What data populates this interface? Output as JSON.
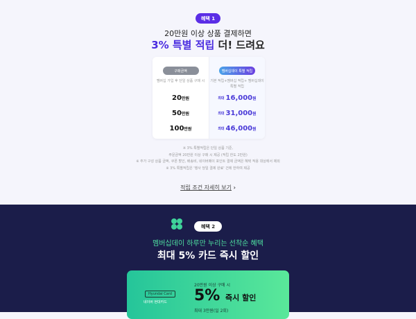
{
  "benefit1": {
    "badge": "혜택 1",
    "subtitle": "20만원 이상 상품 결제하면",
    "title_highlight": "3% 특별 적립",
    "title_rest": " 더! 드려요",
    "table": {
      "left_header": "구매금액",
      "right_header": "멤버십데이 특별 적립",
      "left_desc": "멤버십 가입 후 단일 상품 구매 시",
      "right_desc": "기본 적립+멤버십 적립+ 멤버십데이 특별 적립",
      "max_label": "최대",
      "rows": [
        {
          "amount": "20",
          "amount_unit": "만원",
          "reward": "16,000",
          "reward_unit": "원"
        },
        {
          "amount": "50",
          "amount_unit": "만원",
          "reward": "31,000",
          "reward_unit": "원"
        },
        {
          "amount": "100",
          "amount_unit": "만원",
          "reward": "46,000",
          "reward_unit": "원"
        }
      ]
    },
    "notes": [
      "※ 3% 특별적립은 단일 상품 기준,",
      "주문금액 20만원 이상 구매 시 제공 (적립 한도 2만원)",
      "※ 추가 구성 상품 금액, 쿠폰 할인, 배송비, 네이버페이 포인트 결제 금액은 혜택 적용 대상에서 제외",
      "※ 3% 특별적립은 '행사 당일 결제 완료' 건에 한하여 제공"
    ],
    "link": "적립 조건 자세히 보기"
  },
  "benefit2": {
    "badge": "혜택 2",
    "subtitle": "멤버십데이 하루만 누리는 선착순 혜택",
    "title": "최대 5% 카드 즉시 할인",
    "card": {
      "brand": "Hyundai Card",
      "card_name": "네이버 현대카드",
      "condition": "20만원 이상 구매 시",
      "rate": "5%",
      "rate_label": "즉시 할인",
      "limit": "최대 3만원(일 2회)"
    }
  },
  "colors": {
    "accent": "#4a2ce0",
    "dark_bg": "#1b1d4a",
    "green": "#4fe0a0"
  }
}
